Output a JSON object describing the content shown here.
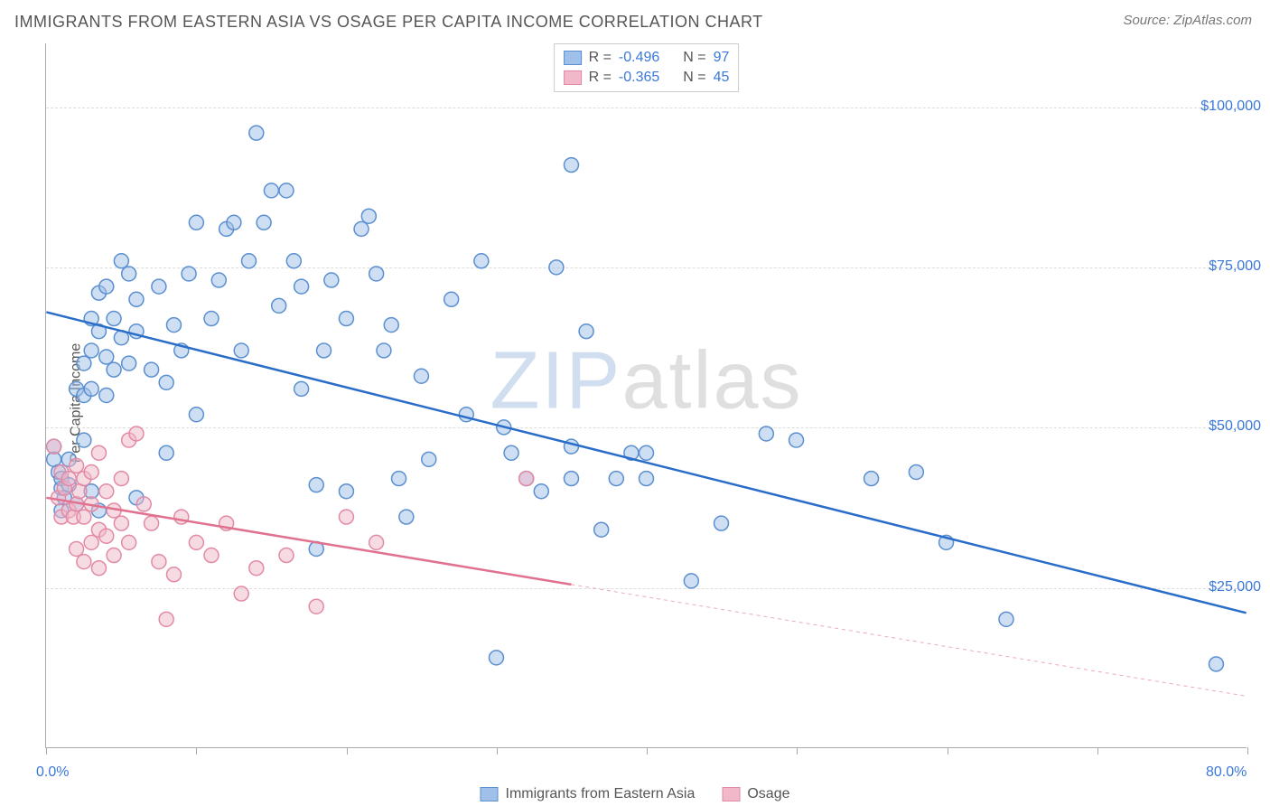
{
  "title": "IMMIGRANTS FROM EASTERN ASIA VS OSAGE PER CAPITA INCOME CORRELATION CHART",
  "source": "Source: ZipAtlas.com",
  "ylabel": "Per Capita Income",
  "watermark_zip": "ZIP",
  "watermark_atlas": "atlas",
  "chart": {
    "type": "scatter",
    "xlim": [
      0,
      80
    ],
    "ylim": [
      0,
      110000
    ],
    "x_tick_positions": [
      0,
      10,
      20,
      30,
      40,
      50,
      60,
      70,
      80
    ],
    "x_tick_labels_shown": {
      "0": "0.0%",
      "80": "80.0%"
    },
    "y_gridlines": [
      25000,
      50000,
      75000,
      100000
    ],
    "y_tick_labels": {
      "25000": "$25,000",
      "50000": "$50,000",
      "75000": "$75,000",
      "100000": "$100,000"
    },
    "background_color": "#ffffff",
    "grid_color": "#dddddd",
    "axis_color": "#aaaaaa",
    "tick_label_color": "#3b78d8",
    "label_fontsize": 16,
    "title_fontsize": 18,
    "marker_radius": 8,
    "marker_stroke_width": 1.5,
    "marker_fill_opacity": 0.25,
    "trendline_width": 2.5
  },
  "series": [
    {
      "name": "Immigrants from Eastern Asia",
      "color_fill": "#9fc0e8",
      "color_stroke": "#5a8fd0",
      "trend_color": "#2a6dc9",
      "R": "-0.496",
      "N": "97",
      "trend": {
        "x1": 0,
        "y1": 68000,
        "x2": 80,
        "y2": 21000,
        "dash_from_x": 80
      },
      "points": [
        [
          0.5,
          47000
        ],
        [
          0.5,
          45000
        ],
        [
          0.8,
          43000
        ],
        [
          1,
          40500
        ],
        [
          1,
          42000
        ],
        [
          1,
          37000
        ],
        [
          1.2,
          39000
        ],
        [
          1.5,
          41000
        ],
        [
          1.5,
          45000
        ],
        [
          2,
          56000
        ],
        [
          2,
          38000
        ],
        [
          2.5,
          60000
        ],
        [
          2.5,
          55000
        ],
        [
          2.5,
          48000
        ],
        [
          3,
          67000
        ],
        [
          3,
          62000
        ],
        [
          3,
          56000
        ],
        [
          3,
          40000
        ],
        [
          3.5,
          71000
        ],
        [
          3.5,
          65000
        ],
        [
          3.5,
          37000
        ],
        [
          4,
          72000
        ],
        [
          4,
          55000
        ],
        [
          4,
          61000
        ],
        [
          4.5,
          67000
        ],
        [
          4.5,
          59000
        ],
        [
          5,
          76000
        ],
        [
          5,
          64000
        ],
        [
          5.5,
          60000
        ],
        [
          5.5,
          74000
        ],
        [
          6,
          39000
        ],
        [
          6,
          65000
        ],
        [
          6,
          70000
        ],
        [
          7,
          59000
        ],
        [
          7.5,
          72000
        ],
        [
          8,
          46000
        ],
        [
          8,
          57000
        ],
        [
          8.5,
          66000
        ],
        [
          9,
          62000
        ],
        [
          9.5,
          74000
        ],
        [
          10,
          82000
        ],
        [
          10,
          52000
        ],
        [
          11,
          67000
        ],
        [
          11.5,
          73000
        ],
        [
          12,
          81000
        ],
        [
          12.5,
          82000
        ],
        [
          13,
          62000
        ],
        [
          13.5,
          76000
        ],
        [
          14,
          96000
        ],
        [
          14.5,
          82000
        ],
        [
          15,
          87000
        ],
        [
          15.5,
          69000
        ],
        [
          16,
          87000
        ],
        [
          16.5,
          76000
        ],
        [
          17,
          72000
        ],
        [
          17,
          56000
        ],
        [
          18,
          41000
        ],
        [
          18,
          31000
        ],
        [
          18.5,
          62000
        ],
        [
          19,
          73000
        ],
        [
          20,
          67000
        ],
        [
          20,
          40000
        ],
        [
          21,
          81000
        ],
        [
          21.5,
          83000
        ],
        [
          22,
          74000
        ],
        [
          22.5,
          62000
        ],
        [
          23,
          66000
        ],
        [
          23.5,
          42000
        ],
        [
          24,
          36000
        ],
        [
          25,
          58000
        ],
        [
          25.5,
          45000
        ],
        [
          27,
          70000
        ],
        [
          28,
          52000
        ],
        [
          29,
          76000
        ],
        [
          30,
          14000
        ],
        [
          30.5,
          50000
        ],
        [
          31,
          46000
        ],
        [
          32,
          42000
        ],
        [
          33,
          40000
        ],
        [
          34,
          75000
        ],
        [
          35,
          47000
        ],
        [
          35,
          42000
        ],
        [
          35,
          91000
        ],
        [
          36,
          65000
        ],
        [
          37,
          34000
        ],
        [
          38,
          42000
        ],
        [
          39,
          46000
        ],
        [
          40,
          42000
        ],
        [
          40,
          46000
        ],
        [
          43,
          26000
        ],
        [
          45,
          35000
        ],
        [
          48,
          49000
        ],
        [
          50,
          48000
        ],
        [
          55,
          42000
        ],
        [
          58,
          43000
        ],
        [
          60,
          32000
        ],
        [
          64,
          20000
        ],
        [
          78,
          13000
        ]
      ]
    },
    {
      "name": "Osage",
      "color_fill": "#f0b8c8",
      "color_stroke": "#e28aa5",
      "trend_color": "#e0718f",
      "R": "-0.365",
      "N": "45",
      "trend": {
        "x1": 0,
        "y1": 39000,
        "x2": 80,
        "y2": 8000,
        "dash_from_x": 35
      },
      "points": [
        [
          0.5,
          47000
        ],
        [
          0.8,
          39000
        ],
        [
          1,
          43000
        ],
        [
          1,
          36000
        ],
        [
          1.2,
          40500
        ],
        [
          1.5,
          37000
        ],
        [
          1.5,
          42000
        ],
        [
          1.8,
          36000
        ],
        [
          2,
          44000
        ],
        [
          2,
          38000
        ],
        [
          2,
          31000
        ],
        [
          2.2,
          40000
        ],
        [
          2.5,
          42000
        ],
        [
          2.5,
          36000
        ],
        [
          2.5,
          29000
        ],
        [
          3,
          43000
        ],
        [
          3,
          38000
        ],
        [
          3,
          32000
        ],
        [
          3.5,
          46000
        ],
        [
          3.5,
          34000
        ],
        [
          3.5,
          28000
        ],
        [
          4,
          40000
        ],
        [
          4,
          33000
        ],
        [
          4.5,
          37000
        ],
        [
          4.5,
          30000
        ],
        [
          5,
          42000
        ],
        [
          5,
          35000
        ],
        [
          5.5,
          48000
        ],
        [
          5.5,
          32000
        ],
        [
          6,
          49000
        ],
        [
          6.5,
          38000
        ],
        [
          7,
          35000
        ],
        [
          7.5,
          29000
        ],
        [
          8,
          20000
        ],
        [
          8.5,
          27000
        ],
        [
          9,
          36000
        ],
        [
          10,
          32000
        ],
        [
          11,
          30000
        ],
        [
          12,
          35000
        ],
        [
          13,
          24000
        ],
        [
          14,
          28000
        ],
        [
          16,
          30000
        ],
        [
          18,
          22000
        ],
        [
          20,
          36000
        ],
        [
          22,
          32000
        ],
        [
          32,
          42000
        ]
      ]
    }
  ],
  "legend_bottom": [
    {
      "label": "Immigrants from Eastern Asia",
      "fill": "#9fc0e8",
      "stroke": "#5a8fd0"
    },
    {
      "label": "Osage",
      "fill": "#f0b8c8",
      "stroke": "#e28aa5"
    }
  ]
}
